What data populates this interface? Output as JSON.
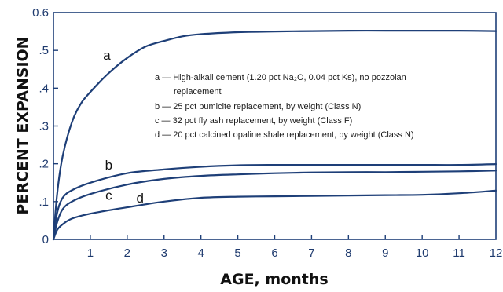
{
  "chart_data": {
    "type": "line",
    "xlabel": "AGE, months",
    "ylabel": "PERCENT EXPANSION",
    "xlim": [
      0,
      12
    ],
    "ylim": [
      0,
      0.6
    ],
    "x_ticks": [
      "1",
      "2",
      "3",
      "4",
      "5",
      "6",
      "7",
      "8",
      "9",
      "10",
      "11",
      "12"
    ],
    "y_ticks": [
      {
        "value": 0,
        "label": "0"
      },
      {
        "value": 0.1,
        "label": ".1"
      },
      {
        "value": 0.2,
        "label": ".2"
      },
      {
        "value": 0.3,
        "label": ".3"
      },
      {
        "value": 0.4,
        "label": ".4"
      },
      {
        "value": 0.5,
        "label": ".5"
      },
      {
        "value": 0.6,
        "label": "0.6"
      }
    ],
    "grid": false,
    "legend_placement": "center-right",
    "legend": [
      {
        "key": "a",
        "text": "a — High-alkali cement (1.20 pct Na₂O, 0.04 pct Ks), no pozzolan",
        "text2": "replacement"
      },
      {
        "key": "b",
        "text": "b — 25 pct pumicite replacement, by weight (Class N)"
      },
      {
        "key": "c",
        "text": "c — 32 pct fly ash replacement, by weight (Class F)"
      },
      {
        "key": "d",
        "text": "d — 20 pct calcined opaline shale replacement, by weight (Class N)"
      }
    ],
    "series": [
      {
        "name": "a",
        "label_at": [
          1.45,
          0.475
        ],
        "points": [
          [
            0,
            0
          ],
          [
            0.1,
            0.12
          ],
          [
            0.25,
            0.22
          ],
          [
            0.5,
            0.31
          ],
          [
            0.75,
            0.36
          ],
          [
            1,
            0.39
          ],
          [
            1.5,
            0.44
          ],
          [
            2,
            0.48
          ],
          [
            2.5,
            0.51
          ],
          [
            3,
            0.525
          ],
          [
            3.5,
            0.537
          ],
          [
            4,
            0.543
          ],
          [
            5,
            0.548
          ],
          [
            6,
            0.55
          ],
          [
            7,
            0.551
          ],
          [
            8,
            0.552
          ],
          [
            9,
            0.552
          ],
          [
            10,
            0.552
          ],
          [
            11,
            0.552
          ],
          [
            12,
            0.551
          ]
        ]
      },
      {
        "name": "b",
        "label_at": [
          1.5,
          0.185
        ],
        "points": [
          [
            0,
            0
          ],
          [
            0.1,
            0.07
          ],
          [
            0.25,
            0.11
          ],
          [
            0.5,
            0.13
          ],
          [
            1,
            0.15
          ],
          [
            2,
            0.175
          ],
          [
            3,
            0.185
          ],
          [
            4,
            0.192
          ],
          [
            5,
            0.196
          ],
          [
            6,
            0.197
          ],
          [
            7,
            0.197
          ],
          [
            8,
            0.197
          ],
          [
            9,
            0.197
          ],
          [
            10,
            0.197
          ],
          [
            11,
            0.197
          ],
          [
            12,
            0.199
          ]
        ]
      },
      {
        "name": "c",
        "label_at": [
          1.5,
          0.105
        ],
        "points": [
          [
            0,
            0
          ],
          [
            0.1,
            0.045
          ],
          [
            0.25,
            0.08
          ],
          [
            0.5,
            0.1
          ],
          [
            1,
            0.12
          ],
          [
            2,
            0.145
          ],
          [
            3,
            0.16
          ],
          [
            4,
            0.168
          ],
          [
            5,
            0.172
          ],
          [
            6,
            0.175
          ],
          [
            7,
            0.177
          ],
          [
            8,
            0.178
          ],
          [
            9,
            0.178
          ],
          [
            10,
            0.179
          ],
          [
            11,
            0.18
          ],
          [
            12,
            0.182
          ]
        ]
      },
      {
        "name": "d",
        "label_at": [
          2.35,
          0.098
        ],
        "points": [
          [
            0,
            0
          ],
          [
            0.1,
            0.025
          ],
          [
            0.25,
            0.04
          ],
          [
            0.5,
            0.055
          ],
          [
            1,
            0.068
          ],
          [
            2,
            0.085
          ],
          [
            3,
            0.1
          ],
          [
            4,
            0.11
          ],
          [
            5,
            0.113
          ],
          [
            6,
            0.114
          ],
          [
            7,
            0.115
          ],
          [
            8,
            0.116
          ],
          [
            9,
            0.117
          ],
          [
            10,
            0.118
          ],
          [
            11,
            0.122
          ],
          [
            12,
            0.129
          ]
        ]
      }
    ],
    "colors": {
      "curve": "#1e3f78",
      "axis": "#1e3f78",
      "tick_label": "#1e3a6e"
    }
  }
}
